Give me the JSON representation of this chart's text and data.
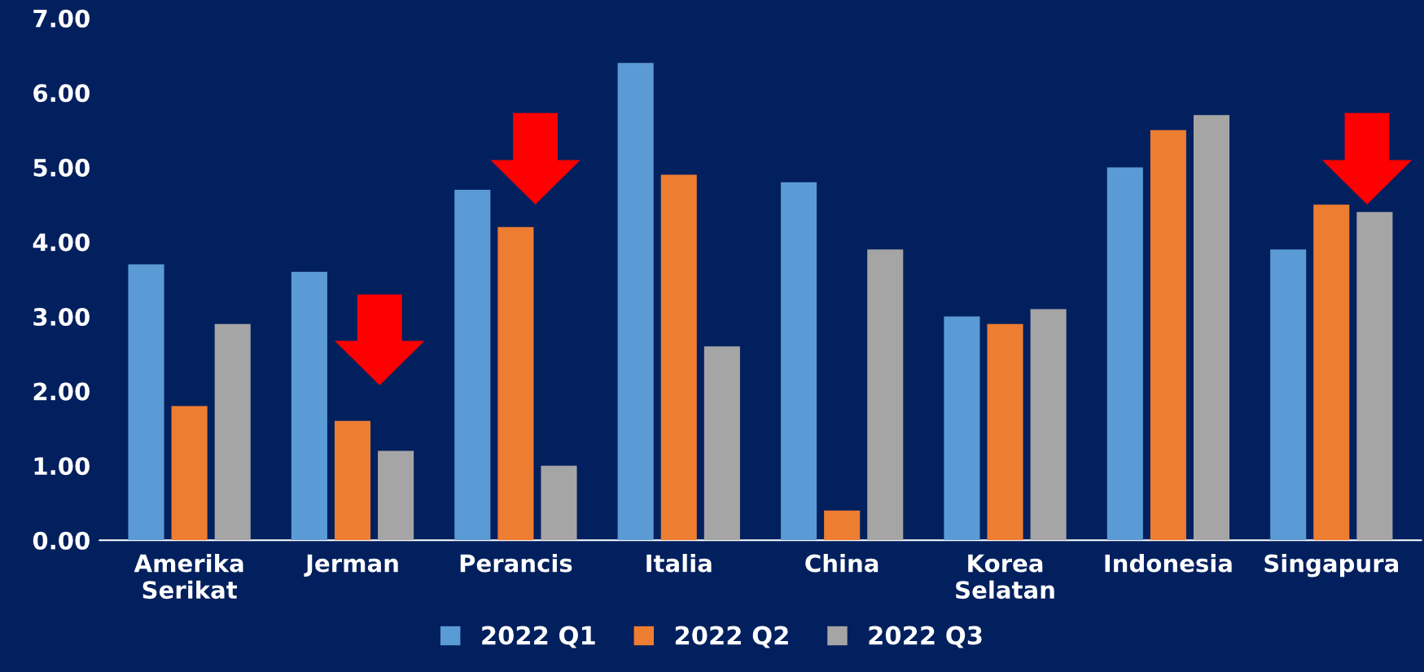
{
  "chart_data": {
    "type": "bar",
    "categories": [
      "Amerika\nSerikat",
      "Jerman",
      "Perancis",
      "Italia",
      "China",
      "Korea\nSelatan",
      "Indonesia",
      "Singapura"
    ],
    "series": [
      {
        "name": "2022 Q1",
        "color": "#5b9bd5",
        "values": [
          3.7,
          3.6,
          4.7,
          6.4,
          4.8,
          3.0,
          5.0,
          3.9
        ]
      },
      {
        "name": "2022 Q2",
        "color": "#ed7d31",
        "values": [
          1.8,
          1.6,
          4.2,
          4.9,
          0.4,
          2.9,
          5.5,
          4.5
        ]
      },
      {
        "name": "2022 Q3",
        "color": "#a5a5a5",
        "values": [
          2.9,
          1.2,
          1.0,
          2.6,
          3.9,
          3.1,
          5.7,
          4.4
        ]
      }
    ],
    "ylim": [
      0,
      7
    ],
    "yticks": [
      {
        "value": 0,
        "label": "0.00"
      },
      {
        "value": 1,
        "label": "1.00"
      },
      {
        "value": 2,
        "label": "2.00"
      },
      {
        "value": 3,
        "label": "3.00"
      },
      {
        "value": 4,
        "label": "4.00"
      },
      {
        "value": 5,
        "label": "5.00"
      },
      {
        "value": 6,
        "label": "6.00"
      },
      {
        "value": 7,
        "label": "7.00"
      }
    ],
    "grid": false,
    "legend": "bottom"
  }
}
